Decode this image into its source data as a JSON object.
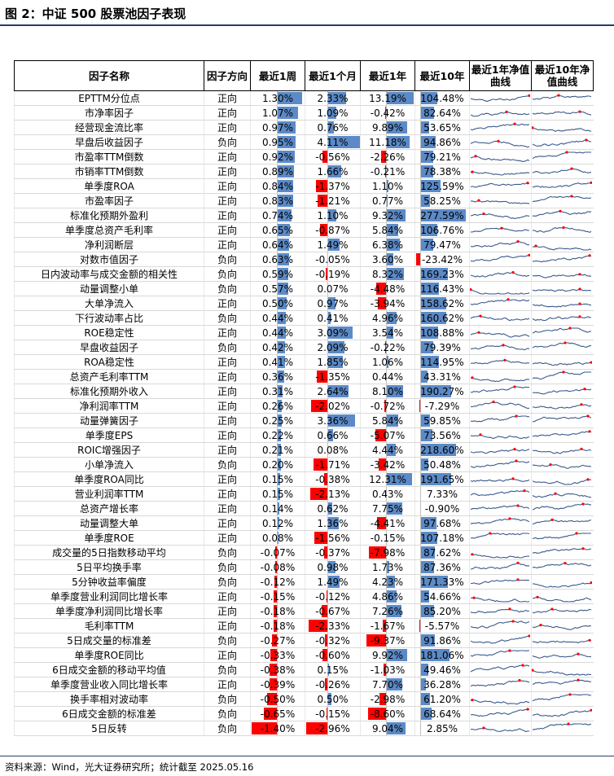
{
  "title": "图 2：中证 500 股票池因子表现",
  "source": "资料来源：Wind，光大证券研究所；统计截至 2025.05.16",
  "headers": [
    "因子名称",
    "因子方向",
    "最近1周",
    "最近1个月",
    "最近1年",
    "最近10年",
    "最近1年净值曲线",
    "最近10年净值曲线"
  ],
  "rows": [
    {
      "name": "EPTTM分位点",
      "dir": "正向",
      "w": "1.30%",
      "m": "2.33%",
      "y": "13.19%",
      "y10": "104.48%"
    },
    {
      "name": "市净率因子",
      "dir": "正向",
      "w": "1.07%",
      "m": "1.09%",
      "y": "-0.42%",
      "y10": "82.64%"
    },
    {
      "name": "经营现金流比率",
      "dir": "正向",
      "w": "0.97%",
      "m": "0.76%",
      "y": "9.89%",
      "y10": "53.65%"
    },
    {
      "name": "早盘后收益因子",
      "dir": "负向",
      "w": "0.95%",
      "m": "4.11%",
      "y": "11.18%",
      "y10": "94.86%"
    },
    {
      "name": "市盈率TTM倒数",
      "dir": "正向",
      "w": "0.92%",
      "m": "-0.56%",
      "y": "-2.26%",
      "y10": "79.21%"
    },
    {
      "name": "市销率TTM倒数",
      "dir": "正向",
      "w": "0.89%",
      "m": "1.66%",
      "y": "-0.21%",
      "y10": "78.38%"
    },
    {
      "name": "单季度ROA",
      "dir": "正向",
      "w": "0.84%",
      "m": "-1.37%",
      "y": "1.10%",
      "y10": "125.59%"
    },
    {
      "name": "市盈率因子",
      "dir": "正向",
      "w": "0.83%",
      "m": "-1.21%",
      "y": "0.77%",
      "y10": "58.25%"
    },
    {
      "name": "标准化预期外盈利",
      "dir": "正向",
      "w": "0.74%",
      "m": "1.10%",
      "y": "9.32%",
      "y10": "277.59%"
    },
    {
      "name": "单季度总资产毛利率",
      "dir": "正向",
      "w": "0.65%",
      "m": "-0.87%",
      "y": "5.84%",
      "y10": "106.76%"
    },
    {
      "name": "净利润断层",
      "dir": "正向",
      "w": "0.64%",
      "m": "1.49%",
      "y": "6.38%",
      "y10": "79.47%"
    },
    {
      "name": "对数市值因子",
      "dir": "负向",
      "w": "0.63%",
      "m": "-0.05%",
      "y": "3.60%",
      "y10": "-23.42%"
    },
    {
      "name": "日内波动率与成交金额的相关性",
      "dir": "负向",
      "w": "0.59%",
      "m": "-0.19%",
      "y": "8.32%",
      "y10": "169.23%"
    },
    {
      "name": "动量调整小单",
      "dir": "负向",
      "w": "0.57%",
      "m": "0.07%",
      "y": "-4.48%",
      "y10": "116.43%"
    },
    {
      "name": "大单净流入",
      "dir": "正向",
      "w": "0.50%",
      "m": "0.97%",
      "y": "-3.94%",
      "y10": "158.62%"
    },
    {
      "name": "下行波动率占比",
      "dir": "负向",
      "w": "0.44%",
      "m": "0.41%",
      "y": "4.96%",
      "y10": "160.62%"
    },
    {
      "name": "ROE稳定性",
      "dir": "正向",
      "w": "0.44%",
      "m": "3.09%",
      "y": "3.54%",
      "y10": "108.88%"
    },
    {
      "name": "早盘收益因子",
      "dir": "负向",
      "w": "0.42%",
      "m": "2.09%",
      "y": "-0.22%",
      "y10": "79.39%"
    },
    {
      "name": "ROA稳定性",
      "dir": "正向",
      "w": "0.41%",
      "m": "1.85%",
      "y": "1.06%",
      "y10": "114.95%"
    },
    {
      "name": "总资产毛利率TTM",
      "dir": "正向",
      "w": "0.36%",
      "m": "-1.35%",
      "y": "0.44%",
      "y10": "43.31%"
    },
    {
      "name": "标准化预期外收入",
      "dir": "正向",
      "w": "0.31%",
      "m": "2.64%",
      "y": "8.10%",
      "y10": "190.27%"
    },
    {
      "name": "净利润率TTM",
      "dir": "正向",
      "w": "0.26%",
      "m": "-2.02%",
      "y": "-0.72%",
      "y10": "-7.29%"
    },
    {
      "name": "动量弹簧因子",
      "dir": "正向",
      "w": "0.25%",
      "m": "3.36%",
      "y": "5.84%",
      "y10": "59.85%"
    },
    {
      "name": "单季度EPS",
      "dir": "正向",
      "w": "0.22%",
      "m": "0.66%",
      "y": "-5.07%",
      "y10": "73.56%"
    },
    {
      "name": "ROIC增强因子",
      "dir": "正向",
      "w": "0.21%",
      "m": "0.08%",
      "y": "4.44%",
      "y10": "218.60%"
    },
    {
      "name": "小单净流入",
      "dir": "负向",
      "w": "0.20%",
      "m": "-1.71%",
      "y": "-3.42%",
      "y10": "50.48%"
    },
    {
      "name": "单季度ROA同比",
      "dir": "正向",
      "w": "0.15%",
      "m": "-0.38%",
      "y": "12.31%",
      "y10": "191.65%"
    },
    {
      "name": "营业利润率TTM",
      "dir": "正向",
      "w": "0.15%",
      "m": "-2.13%",
      "y": "0.43%",
      "y10": "7.33%"
    },
    {
      "name": "总资产增长率",
      "dir": "正向",
      "w": "0.14%",
      "m": "0.62%",
      "y": "7.75%",
      "y10": "-0.90%"
    },
    {
      "name": "动量调整大单",
      "dir": "正向",
      "w": "0.12%",
      "m": "1.36%",
      "y": "-4.41%",
      "y10": "97.68%"
    },
    {
      "name": "单季度ROE",
      "dir": "正向",
      "w": "0.08%",
      "m": "-1.56%",
      "y": "-0.15%",
      "y10": "107.18%"
    },
    {
      "name": "成交量的5日指数移动平均",
      "dir": "负向",
      "w": "-0.07%",
      "m": "-0.37%",
      "y": "-7.98%",
      "y10": "87.62%"
    },
    {
      "name": "5日平均换手率",
      "dir": "负向",
      "w": "-0.08%",
      "m": "0.98%",
      "y": "1.73%",
      "y10": "87.36%"
    },
    {
      "name": "5分钟收益率偏度",
      "dir": "负向",
      "w": "-0.12%",
      "m": "1.49%",
      "y": "4.23%",
      "y10": "171.33%"
    },
    {
      "name": "单季度营业利润同比增长率",
      "dir": "正向",
      "w": "-0.15%",
      "m": "-0.12%",
      "y": "4.86%",
      "y10": "54.66%"
    },
    {
      "name": "单季度净利润同比增长率",
      "dir": "正向",
      "w": "-0.18%",
      "m": "-0.67%",
      "y": "7.26%",
      "y10": "85.20%"
    },
    {
      "name": "毛利率TTM",
      "dir": "正向",
      "w": "-0.18%",
      "m": "-2.33%",
      "y": "-1.67%",
      "y10": "-5.57%"
    },
    {
      "name": "5日成交量的标准差",
      "dir": "负向",
      "w": "-0.27%",
      "m": "-0.32%",
      "y": "-9.37%",
      "y10": "91.86%"
    },
    {
      "name": "单季度ROE同比",
      "dir": "正向",
      "w": "-0.33%",
      "m": "-0.60%",
      "y": "9.92%",
      "y10": "181.06%"
    },
    {
      "name": "6日成交金额的移动平均值",
      "dir": "负向",
      "w": "-0.38%",
      "m": "0.15%",
      "y": "-1.03%",
      "y10": "49.46%"
    },
    {
      "name": "单季度营业收入同比增长率",
      "dir": "正向",
      "w": "-0.39%",
      "m": "-0.26%",
      "y": "7.70%",
      "y10": "36.28%"
    },
    {
      "name": "换手率相对波动率",
      "dir": "负向",
      "w": "-0.50%",
      "m": "0.50%",
      "y": "-2.98%",
      "y10": "61.20%"
    },
    {
      "name": "6日成交金额的标准差",
      "dir": "负向",
      "w": "-0.65%",
      "m": "-0.15%",
      "y": "-8.60%",
      "y10": "68.64%"
    },
    {
      "name": "5日反转",
      "dir": "负向",
      "w": "-1.40%",
      "m": "-2.96%",
      "y": "9.04%",
      "y10": "2.85%"
    }
  ],
  "colors": {
    "positive_bar": "#5b8ac7",
    "negative_bar": "#ff0000",
    "sparkline": "#3a5a8c",
    "marker": "#ff0000"
  }
}
